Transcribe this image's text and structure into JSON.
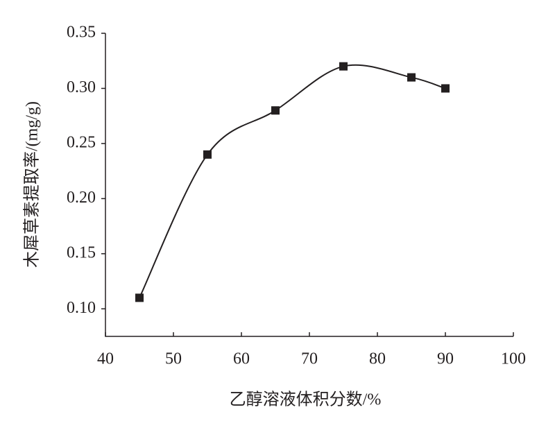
{
  "chart_data": {
    "type": "line",
    "x_label": "乙醇溶液体积分数/%",
    "y_label": "木犀草素提取率/(mg/g)",
    "x": [
      45,
      55,
      65,
      75,
      85,
      90
    ],
    "series": [
      {
        "color": "#231f20",
        "values": [
          0.11,
          0.24,
          0.28,
          0.32,
          0.31,
          0.3
        ]
      }
    ],
    "xlim": [
      40,
      100
    ],
    "xticks": [
      40,
      50,
      60,
      70,
      80,
      90,
      100
    ],
    "ylim": [
      0.075,
      0.35
    ],
    "yticks": [
      {
        "value": 0.1,
        "label": "0.10"
      },
      0.15,
      {
        "value": 0.2,
        "label": "0.20"
      },
      0.25,
      {
        "value": 0.3,
        "label": "0.30"
      },
      0.35
    ],
    "smooth": true,
    "marker": "square"
  }
}
